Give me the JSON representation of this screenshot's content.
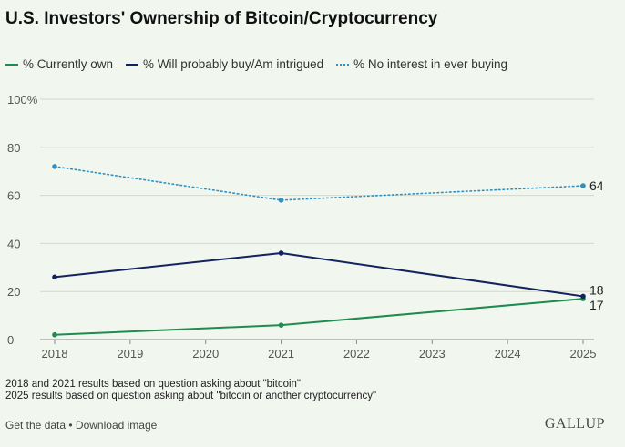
{
  "title": "U.S. Investors' Ownership of Bitcoin/Cryptocurrency",
  "notes": [
    "2018 and 2021 results based on question asking about \"bitcoin\"",
    "2025 results based on question asking about \"bitcoin or another cryptocurrency\""
  ],
  "footer": {
    "get_data": "Get the data",
    "separator": " • ",
    "download": "Download image",
    "brand": "GALLUP"
  },
  "chart_data": {
    "type": "line",
    "title": "U.S. Investors' Ownership of Bitcoin/Cryptocurrency",
    "xlabel": "",
    "ylabel": "",
    "x_ticks": [
      "2018",
      "2019",
      "2020",
      "2021",
      "2022",
      "2023",
      "2024",
      "2025"
    ],
    "y_ticks": [
      "0",
      "20",
      "40",
      "60",
      "80",
      "100%"
    ],
    "xlim": [
      2018,
      2025
    ],
    "ylim": [
      0,
      100
    ],
    "grid": true,
    "legend_position": "top-left",
    "series": [
      {
        "name": "% Currently own",
        "color": "#1e8c4f",
        "style": "solid",
        "x": [
          2018,
          2021,
          2025
        ],
        "values": [
          2,
          6,
          17
        ],
        "end_label": "17"
      },
      {
        "name": "% Will probably buy/Am intrigued",
        "color": "#14235f",
        "style": "solid",
        "x": [
          2018,
          2021,
          2025
        ],
        "values": [
          26,
          36,
          18
        ],
        "end_label": "18"
      },
      {
        "name": "% No interest in ever buying",
        "color": "#2f8fc0",
        "style": "dotted",
        "x": [
          2018,
          2021,
          2025
        ],
        "values": [
          72,
          58,
          64
        ],
        "end_label": "64"
      }
    ]
  }
}
